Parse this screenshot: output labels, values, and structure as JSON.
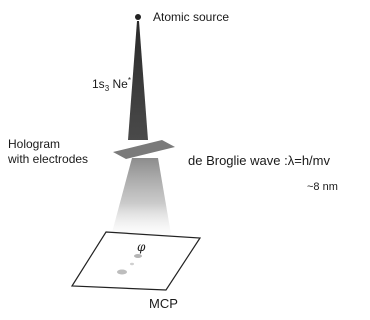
{
  "labels": {
    "source": "Atomic source",
    "atom_main": "1s",
    "atom_sub": "3",
    "atom_species": " Ne",
    "atom_sup": "*",
    "hologram_line1": "Hologram",
    "hologram_line2": "with electrodes",
    "debroglie": "de Broglie wave :λ=h/mv",
    "wavelength": "~8 nm",
    "detector": "MCP",
    "phase_symbol": "φ"
  },
  "colors": {
    "beam_dark": "#222222",
    "hologram": "#7a7a7a",
    "cone_top": "#8c8c8c",
    "detector_outline": "#222222",
    "spots": "#b8b8b8"
  }
}
